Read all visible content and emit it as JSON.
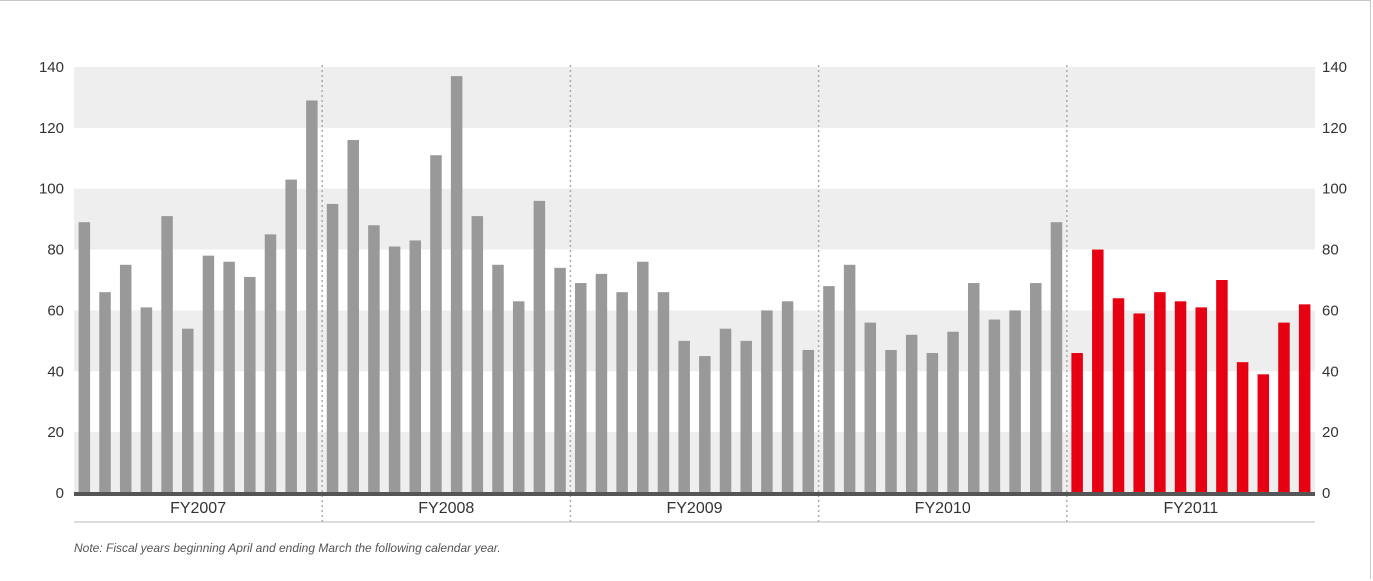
{
  "chart_data": {
    "type": "bar",
    "title": "",
    "xlabel": "",
    "ylabel": "",
    "ylim": [
      0,
      140
    ],
    "yticks": [
      0,
      20,
      40,
      60,
      80,
      100,
      120,
      140
    ],
    "grid": "alternating horizontal bands",
    "fiscal_years": [
      {
        "label": "FY2007",
        "values": [
          89,
          66,
          75,
          61,
          91,
          54,
          78,
          76,
          71,
          85,
          103,
          129
        ]
      },
      {
        "label": "FY2008",
        "values": [
          95,
          116,
          88,
          81,
          83,
          111,
          137,
          91,
          75,
          63,
          96,
          74
        ]
      },
      {
        "label": "FY2009",
        "values": [
          69,
          72,
          66,
          76,
          66,
          50,
          45,
          54,
          50,
          60,
          63,
          47
        ]
      },
      {
        "label": "FY2010",
        "values": [
          68,
          75,
          56,
          47,
          52,
          46,
          53,
          69,
          57,
          60,
          69,
          89
        ]
      },
      {
        "label": "FY2011",
        "values": [
          46,
          80,
          64,
          59,
          66,
          63,
          61,
          70,
          43,
          39,
          56,
          62
        ]
      }
    ],
    "colors": {
      "past": "#999999",
      "current": "#e60012",
      "band": "#eeeeee",
      "axis": "#555555",
      "divider": "#aaaaaa"
    }
  },
  "note": "Note: Fiscal years beginning April and ending March the following calendar year."
}
